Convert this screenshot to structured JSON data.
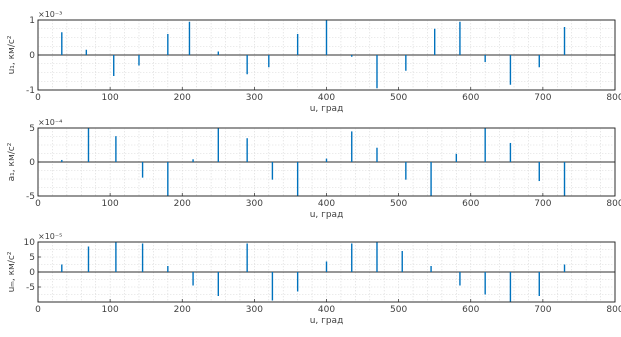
{
  "colors": {
    "stem": "#0072bd",
    "grid": "#d7d7d7",
    "axes": "#262626"
  },
  "chart_data": [
    {
      "type": "stem",
      "xlabel": "u, град",
      "ylabel": "u₁, км/с²",
      "exponent": "×10⁻³",
      "xlim": [
        0,
        800
      ],
      "ylim": [
        -1,
        1
      ],
      "xticks": [
        0,
        100,
        200,
        300,
        400,
        500,
        600,
        700,
        800
      ],
      "yticks": [
        -1,
        0,
        1
      ],
      "ytick_labels": [
        "-1",
        "0",
        "1"
      ],
      "grid": true,
      "x": [
        33,
        67,
        105,
        140,
        180,
        210,
        250,
        290,
        320,
        360,
        400,
        435,
        470,
        510,
        550,
        585,
        620,
        655,
        695,
        730
      ],
      "y": [
        0.65,
        0.15,
        -0.6,
        -0.3,
        0.6,
        0.95,
        0.1,
        -0.55,
        -0.35,
        0.6,
        1.0,
        -0.05,
        -0.95,
        -0.45,
        0.75,
        0.95,
        -0.2,
        -0.85,
        -0.35,
        0.8
      ]
    },
    {
      "type": "stem",
      "xlabel": "u, град",
      "ylabel": "a₁, км/с²",
      "exponent": "×10⁻⁴",
      "xlim": [
        0,
        800
      ],
      "ylim": [
        -5,
        5
      ],
      "xticks": [
        0,
        100,
        200,
        300,
        400,
        500,
        600,
        700,
        800
      ],
      "yticks": [
        -5,
        0,
        5
      ],
      "ytick_labels": [
        "-5",
        "0",
        "5"
      ],
      "grid": true,
      "x": [
        33,
        70,
        108,
        145,
        180,
        215,
        250,
        290,
        325,
        360,
        400,
        435,
        470,
        510,
        545,
        580,
        620,
        655,
        695,
        730
      ],
      "y": [
        0.3,
        5.0,
        3.8,
        -2.3,
        -5.0,
        0.4,
        5.0,
        3.5,
        -2.6,
        -5.0,
        0.5,
        4.5,
        2.1,
        -2.6,
        -5.0,
        1.2,
        5.0,
        2.8,
        -2.8,
        -5.0
      ]
    },
    {
      "type": "stem",
      "xlabel": "u, град",
      "ylabel": "uₘ, км/с²",
      "exponent": "×10⁻⁵",
      "xlim": [
        0,
        800
      ],
      "ylim": [
        -10,
        10
      ],
      "xticks": [
        0,
        100,
        200,
        300,
        400,
        500,
        600,
        700,
        800
      ],
      "yticks": [
        -10,
        -5,
        0,
        5,
        10
      ],
      "ytick_labels": [
        "",
        "-5",
        "0",
        "5",
        "10"
      ],
      "grid": true,
      "x": [
        33,
        70,
        108,
        145,
        180,
        215,
        250,
        290,
        325,
        360,
        400,
        435,
        470,
        505,
        545,
        585,
        620,
        655,
        695,
        730
      ],
      "y": [
        2.5,
        8.5,
        10.0,
        9.5,
        2.0,
        -4.5,
        -8.0,
        9.5,
        -9.5,
        -6.5,
        3.5,
        9.5,
        10.0,
        7.0,
        2.0,
        -4.5,
        -7.5,
        -10.0,
        -8.0,
        2.5
      ]
    }
  ]
}
